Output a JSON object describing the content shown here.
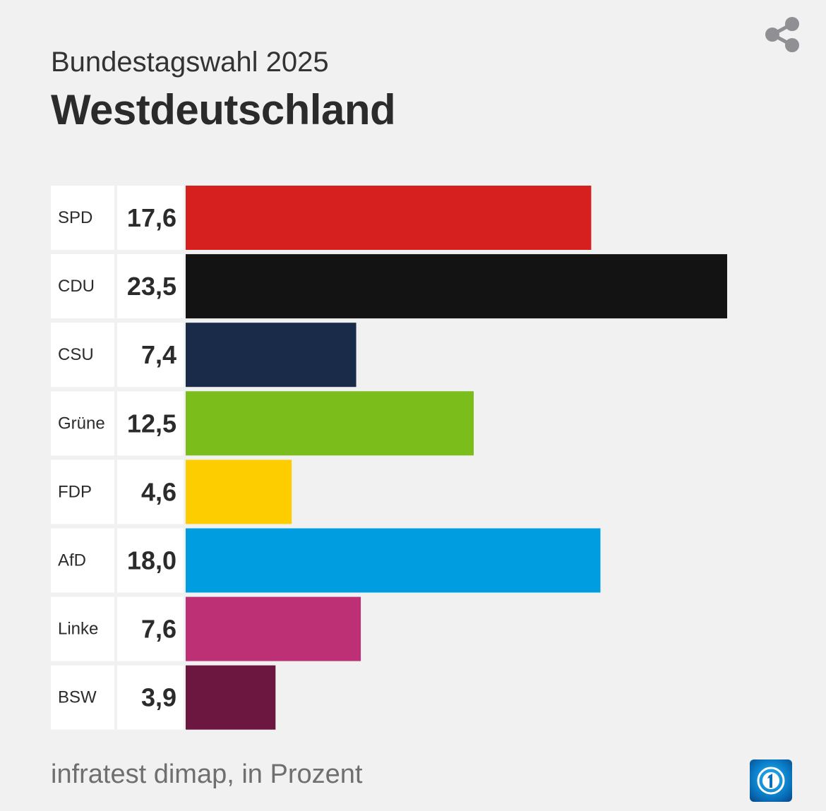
{
  "header": {
    "subtitle": "Bundestagswahl 2025",
    "title": "Westdeutschland"
  },
  "share_icon": "share-icon",
  "footer": {
    "source": "infratest dimap, in Prozent"
  },
  "logo_icon": "tagesschau-logo-icon",
  "chart_data": {
    "type": "bar",
    "orientation": "horizontal",
    "categories": [
      "SPD",
      "CDU",
      "CSU",
      "Grüne",
      "FDP",
      "AfD",
      "Linke",
      "BSW"
    ],
    "values": [
      17.6,
      23.5,
      7.4,
      12.5,
      4.6,
      18.0,
      7.6,
      3.9
    ],
    "value_labels": [
      "17,6",
      "23,5",
      "7,4",
      "12,5",
      "4,6",
      "18,0",
      "7,6",
      "3,9"
    ],
    "colors": [
      "#d61f1f",
      "#131313",
      "#1a2b4a",
      "#7bbd1b",
      "#fecd00",
      "#009ee0",
      "#bd3075",
      "#6b1740"
    ],
    "unit": "%",
    "xlim": [
      0,
      23.5
    ]
  }
}
